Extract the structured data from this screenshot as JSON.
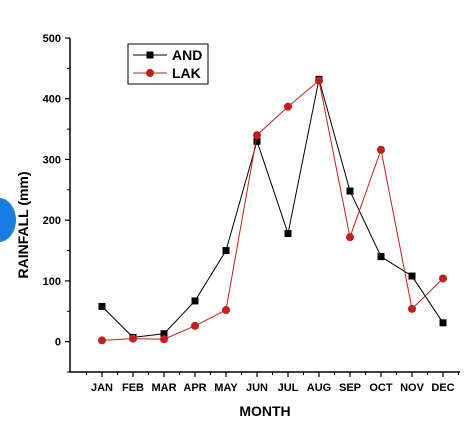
{
  "chart_data": {
    "type": "line",
    "categories": [
      "JAN",
      "FEB",
      "MAR",
      "APR",
      "MAY",
      "JUN",
      "JUL",
      "AUG",
      "SEP",
      "OCT",
      "NOV",
      "DEC"
    ],
    "series": [
      {
        "name": "AND",
        "color": "#000000",
        "marker": "square",
        "values": [
          58,
          7,
          13,
          67,
          150,
          330,
          178,
          432,
          248,
          140,
          108,
          31
        ]
      },
      {
        "name": "LAK",
        "color": "#c0201c",
        "marker": "circle",
        "values": [
          2,
          5,
          4,
          26,
          52,
          340,
          387,
          430,
          172,
          316,
          54,
          104
        ]
      }
    ],
    "xlabel": "MONTH",
    "ylabel": "RAINFALL (mm)",
    "ylim": [
      -50,
      500
    ],
    "yticks": [
      0,
      100,
      200,
      300,
      400,
      500
    ],
    "grid": false,
    "legend_position": "top-left"
  }
}
